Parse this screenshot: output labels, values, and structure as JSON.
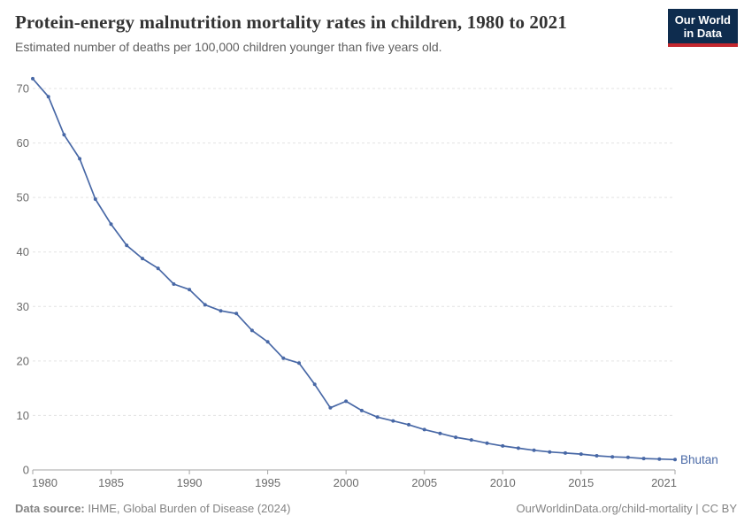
{
  "header": {
    "logo": {
      "line1": "Our World",
      "line2": "in Data"
    }
  },
  "chart_data": {
    "type": "line",
    "title": "Protein-energy malnutrition mortality rates in children, 1980 to 2021",
    "subtitle": "Estimated number of deaths per 100,000 children younger than five years old.",
    "x": [
      1980,
      1981,
      1982,
      1983,
      1984,
      1985,
      1986,
      1987,
      1988,
      1989,
      1990,
      1991,
      1992,
      1993,
      1994,
      1995,
      1996,
      1997,
      1998,
      1999,
      2000,
      2001,
      2002,
      2003,
      2004,
      2005,
      2006,
      2007,
      2008,
      2009,
      2010,
      2011,
      2012,
      2013,
      2014,
      2015,
      2016,
      2017,
      2018,
      2019,
      2020,
      2021
    ],
    "series": [
      {
        "name": "Bhutan",
        "color": "#4868a6",
        "values": [
          71.8,
          68.5,
          61.5,
          57.1,
          49.7,
          45.1,
          41.2,
          38.8,
          37.0,
          34.1,
          33.1,
          30.3,
          29.2,
          28.7,
          25.6,
          23.5,
          20.5,
          19.6,
          15.7,
          11.4,
          12.6,
          10.9,
          9.7,
          9.0,
          8.3,
          7.4,
          6.7,
          6.0,
          5.5,
          4.9,
          4.4,
          4.0,
          3.6,
          3.3,
          3.1,
          2.9,
          2.6,
          2.4,
          2.3,
          2.1,
          2.0,
          1.9
        ]
      }
    ],
    "entity_label": "Bhutan",
    "xlim": [
      1980,
      2021
    ],
    "ylim": [
      0,
      72
    ],
    "yticks": [
      0,
      10,
      20,
      30,
      40,
      50,
      60,
      70
    ],
    "xticks": [
      1980,
      1985,
      1990,
      1995,
      2000,
      2005,
      2010,
      2015,
      2021
    ],
    "grid": true,
    "legend_position": "end-of-line",
    "colors": {
      "grid": "#e3e3e3",
      "axis": "#a5a5a5",
      "tick_label": "#6b6b6b"
    }
  },
  "footer": {
    "source_label": "Data source:",
    "source_text": " IHME, Global Burden of Disease (2024)",
    "credit_url": "OurWorldinData.org/child-mortality",
    "credit_license": " | CC BY"
  }
}
